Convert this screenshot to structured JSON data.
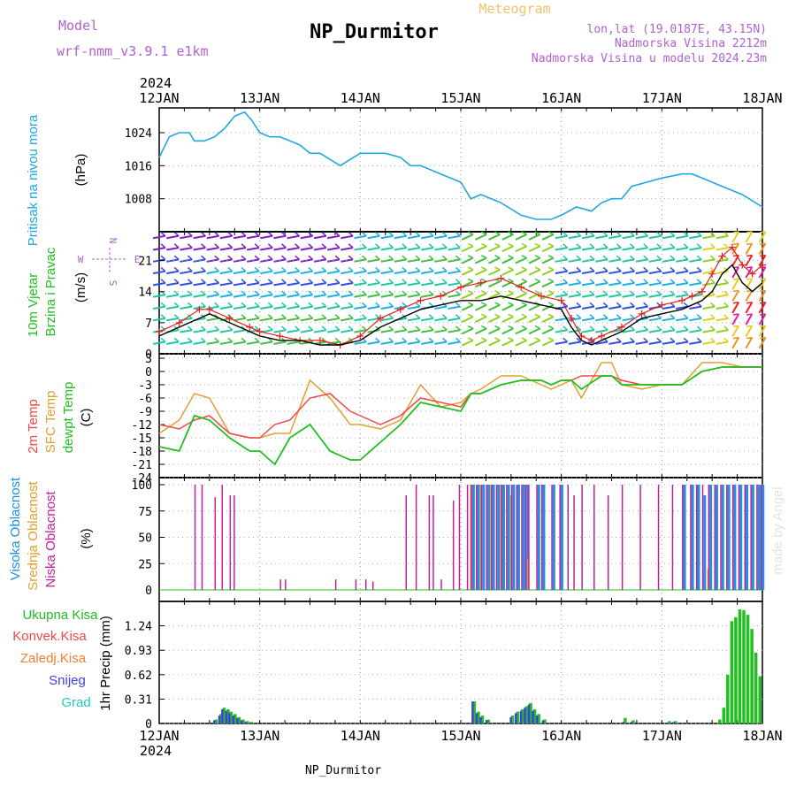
{
  "header": {
    "model_label": "Model",
    "model_name": "wrf-nmm_v3.9.1  e1km",
    "title": "NP_Durmitor",
    "product": "Meteogram",
    "coords": "lon,lat (19.0187E, 43.15N)",
    "elevation": "Nadmorska Visina 2212m",
    "model_elevation": "Nadmorska Visina u modelu 2024.23m",
    "footer": "NP_Durmitor",
    "credit": "made by Angel"
  },
  "time_axis": {
    "year": "2024",
    "labels": [
      "12JAN",
      "13JAN",
      "14JAN",
      "15JAN",
      "16JAN",
      "17JAN",
      "18JAN"
    ]
  },
  "colors": {
    "pressure": "#1fa8e0",
    "wind_speed": "#000000",
    "wind_gust": "#e02020",
    "temp_2m": "#f04848",
    "temp_sfc": "#e0a030",
    "dewpoint": "#20c020",
    "cloud_high": "#2090e0",
    "cloud_mid": "#e0a030",
    "cloud_low": "#c020a0",
    "precip_total": "#20c020",
    "precip_conv": "#f04848",
    "precip_freezing": "#f08030",
    "precip_snow": "#4040e0",
    "precip_hail": "#20c8c8"
  },
  "chart_data": [
    {
      "type": "line",
      "panel": "pressure",
      "ylabel_name": "Pritisak na nivou mora",
      "ylabel_unit": "(hPa)",
      "ylim": [
        1000,
        1030
      ],
      "yticks": [
        1008,
        1016,
        1024
      ],
      "grid": true,
      "x_days": [
        0,
        0.1,
        0.2,
        0.3,
        0.35,
        0.45,
        0.55,
        0.65,
        0.75,
        0.85,
        0.92,
        1.0,
        1.1,
        1.2,
        1.3,
        1.4,
        1.5,
        1.6,
        1.8,
        2.0,
        2.1,
        2.25,
        2.4,
        2.5,
        2.6,
        2.7,
        2.8,
        3.0,
        3.1,
        3.2,
        3.4,
        3.6,
        3.75,
        3.9,
        4.0,
        4.15,
        4.3,
        4.4,
        4.5,
        4.6,
        4.7,
        4.85,
        5.0,
        5.2,
        5.3,
        5.4,
        5.6,
        5.8,
        6.0
      ],
      "series": [
        {
          "values": [
            1018,
            1023,
            1024,
            1024,
            1022,
            1022,
            1023,
            1025,
            1028,
            1029,
            1027,
            1024,
            1023,
            1023,
            1022,
            1021,
            1019,
            1019,
            1016,
            1019,
            1019,
            1019,
            1018,
            1016,
            1016,
            1015,
            1014,
            1012,
            1008,
            1009,
            1007,
            1004,
            1003,
            1003,
            1004,
            1006,
            1005,
            1007,
            1008,
            1008,
            1011,
            1012,
            1013,
            1014,
            1014,
            1013,
            1011,
            1009,
            1006
          ]
        }
      ]
    },
    {
      "type": "line",
      "panel": "wind",
      "ylabel_name": "10m Vjetar Brzina i Pravac",
      "ylabel_unit": "(m/s)",
      "compass": {
        "n": "N",
        "s": "S",
        "e": "E",
        "w": "W"
      },
      "ylim": [
        0,
        27.5
      ],
      "yticks": [
        0,
        7,
        14,
        21
      ],
      "grid": true,
      "x_days": [
        0,
        0.2,
        0.4,
        0.5,
        0.7,
        0.9,
        1.0,
        1.2,
        1.4,
        1.6,
        1.8,
        2.0,
        2.2,
        2.4,
        2.6,
        2.8,
        3.0,
        3.2,
        3.4,
        3.6,
        3.8,
        4.0,
        4.1,
        4.2,
        4.3,
        4.4,
        4.6,
        4.8,
        5.0,
        5.2,
        5.3,
        5.4,
        5.5,
        5.6,
        5.7,
        5.8,
        5.9,
        6.0
      ],
      "series": [
        {
          "values": [
            4,
            6,
            8,
            9,
            7,
            5,
            4,
            3,
            3,
            2,
            2,
            3,
            6,
            8,
            10,
            11,
            12,
            12,
            13,
            12,
            11,
            10,
            6,
            3,
            2,
            3,
            5,
            8,
            9,
            10,
            11,
            12,
            14,
            18,
            20,
            16,
            14,
            16
          ]
        },
        {
          "values": [
            5,
            7,
            10,
            10,
            8,
            6,
            5,
            4,
            3,
            3,
            2,
            4,
            8,
            10,
            12,
            13,
            15,
            16,
            17,
            15,
            13,
            12,
            8,
            4,
            3,
            4,
            6,
            9,
            11,
            12,
            13,
            14,
            18,
            22,
            24,
            20,
            18,
            20
          ]
        }
      ]
    },
    {
      "type": "line",
      "panel": "temperature",
      "ylabel_names": [
        "2m Temp",
        "SFC Temp",
        "dewpt Temp"
      ],
      "ylabel_unit": "(C)",
      "ylim": [
        -24,
        4
      ],
      "yticks": [
        -24,
        -21,
        -18,
        -15,
        -12,
        -9,
        -6,
        -3,
        0,
        3
      ],
      "grid": true,
      "x_days": [
        0,
        0.2,
        0.35,
        0.5,
        0.7,
        0.9,
        1.0,
        1.15,
        1.3,
        1.5,
        1.7,
        1.9,
        2.0,
        2.2,
        2.4,
        2.6,
        2.8,
        3.0,
        3.1,
        3.2,
        3.4,
        3.6,
        3.8,
        3.9,
        4.0,
        4.1,
        4.2,
        4.4,
        4.5,
        4.6,
        4.8,
        5.0,
        5.2,
        5.4,
        5.6,
        5.8,
        6.0
      ],
      "series": [
        {
          "name": "2m Temp",
          "values": [
            -12,
            -13,
            -11,
            -10,
            -14,
            -15,
            -15,
            -12,
            -11,
            -6,
            -5,
            -9,
            -10,
            -12,
            -10,
            -6,
            -7,
            -8,
            -5,
            -5,
            -3,
            -2,
            -2,
            -3,
            -2,
            -2,
            -1,
            -1,
            -1,
            -2,
            -3,
            -3,
            -3,
            0,
            1,
            1,
            1
          ]
        },
        {
          "name": "SFC Temp",
          "values": [
            -14,
            -11,
            -5,
            -6,
            -14,
            -15,
            -15,
            -14,
            -14,
            -2,
            -6,
            -12,
            -12,
            -13,
            -11,
            -3,
            -8,
            -7,
            -5,
            -4,
            -1,
            -1,
            -3,
            -4,
            -3,
            -2,
            -6,
            2,
            2,
            -3,
            -4,
            -3,
            -3,
            2,
            2,
            1,
            1
          ]
        },
        {
          "name": "dewpt Temp",
          "values": [
            -17,
            -18,
            -10,
            -11,
            -15,
            -18,
            -18,
            -21,
            -15,
            -12,
            -18,
            -20,
            -20,
            -16,
            -12,
            -7,
            -8,
            -9,
            -5,
            -5,
            -3,
            -2,
            -2,
            -3,
            -2,
            -2,
            -4,
            -1,
            -1,
            -3,
            -3,
            -3,
            -3,
            0,
            1,
            1,
            1
          ]
        }
      ]
    },
    {
      "type": "bar",
      "panel": "clouds",
      "ylabel_names": [
        "Visoka Oblacnost",
        "Srednja Oblacnost",
        "Niska Oblacnost"
      ],
      "ylabel_unit": "(%)",
      "ylim": [
        0,
        100
      ],
      "yticks": [
        0,
        25,
        50,
        75,
        100
      ],
      "grid": true,
      "x_days": [
        0.35,
        0.42,
        0.55,
        0.62,
        0.7,
        0.74,
        1.2,
        1.25,
        1.75,
        1.95,
        2.05,
        2.12,
        2.45,
        2.55,
        2.68,
        2.72,
        2.8,
        2.92,
        2.98,
        3.06,
        3.1,
        3.15,
        3.2,
        3.25,
        3.3,
        3.35,
        3.4,
        3.45,
        3.5,
        3.55,
        3.6,
        3.64,
        3.67,
        3.75,
        3.8,
        3.9,
        3.98,
        4.06,
        4.12,
        4.2,
        4.32,
        4.46,
        4.6,
        4.78,
        4.96,
        5.1,
        5.2,
        5.28,
        5.34,
        5.4,
        5.46,
        5.52,
        5.58,
        5.64,
        5.7,
        5.76,
        5.82,
        5.88,
        5.94,
        5.98
      ],
      "series": [
        {
          "name": "Visoka Oblacnost",
          "values": [
            0,
            0,
            0,
            0,
            0,
            0,
            0,
            0,
            0,
            0,
            0,
            0,
            0,
            0,
            0,
            0,
            0,
            0,
            0,
            0,
            100,
            100,
            100,
            100,
            100,
            100,
            100,
            100,
            100,
            100,
            100,
            100,
            0,
            100,
            100,
            100,
            100,
            0,
            0,
            0,
            0,
            0,
            0,
            0,
            0,
            0,
            100,
            100,
            100,
            90,
            100,
            100,
            100,
            100,
            100,
            100,
            100,
            100,
            100,
            100
          ]
        },
        {
          "name": "Srednja Oblacnost",
          "values": [
            0,
            0,
            0,
            0,
            0,
            0,
            0,
            0,
            0,
            0,
            0,
            0,
            0,
            0,
            0,
            0,
            0,
            0,
            0,
            0,
            100,
            0,
            100,
            0,
            100,
            0,
            100,
            0,
            90,
            0,
            0,
            0,
            30,
            0,
            0,
            0,
            0,
            0,
            0,
            0,
            0,
            0,
            0,
            0,
            0,
            0,
            0,
            0,
            0,
            0,
            20,
            0,
            0,
            0,
            0,
            0,
            0,
            0,
            0,
            0
          ]
        },
        {
          "name": "Niska Oblacnost",
          "values": [
            100,
            100,
            88,
            100,
            90,
            90,
            10,
            10,
            10,
            10,
            10,
            8,
            90,
            100,
            90,
            90,
            10,
            85,
            100,
            100,
            100,
            100,
            100,
            100,
            100,
            100,
            100,
            100,
            100,
            100,
            100,
            100,
            100,
            100,
            100,
            100,
            100,
            100,
            90,
            100,
            100,
            90,
            100,
            100,
            100,
            100,
            100,
            100,
            100,
            100,
            100,
            100,
            100,
            100,
            100,
            100,
            100,
            100,
            100,
            100
          ]
        }
      ]
    },
    {
      "type": "bar",
      "panel": "precipitation",
      "ylabel_names": [
        "Ukupna Kisa",
        "Konvek.Kisa",
        "Zaledj.Kisa",
        "Snijeg",
        "Grad"
      ],
      "ylabel_unit": "1hr Precip (mm)",
      "ylim": [
        0,
        1.55
      ],
      "yticks": [
        0,
        0.31,
        0.62,
        0.93,
        1.24
      ],
      "grid": true,
      "x_days": [
        0.55,
        0.6,
        0.63,
        0.67,
        0.7,
        0.74,
        0.78,
        0.82,
        0.86,
        0.9,
        3.12,
        3.16,
        3.2,
        3.26,
        3.5,
        3.55,
        3.6,
        3.64,
        3.68,
        3.72,
        3.76,
        3.82,
        4.62,
        4.7,
        5.06,
        5.12,
        5.56,
        5.6,
        5.64,
        5.68,
        5.72,
        5.76,
        5.8,
        5.84,
        5.88,
        5.92,
        5.96
      ],
      "series": [
        {
          "name": "Ukupna Kisa",
          "values": [
            0.05,
            0.12,
            0.2,
            0.18,
            0.15,
            0.12,
            0.08,
            0.05,
            0.03,
            0.02,
            0.28,
            0.15,
            0.1,
            0.05,
            0.1,
            0.15,
            0.18,
            0.22,
            0.26,
            0.18,
            0.12,
            0.05,
            0.07,
            0.04,
            0.03,
            0.03,
            0.05,
            0.2,
            0.62,
            1.3,
            1.35,
            1.45,
            1.44,
            1.38,
            1.2,
            0.9,
            0.6
          ]
        },
        {
          "name": "Snijeg",
          "values": [
            0.04,
            0.1,
            0.18,
            0.16,
            0.13,
            0.1,
            0.07,
            0.04,
            0.02,
            0.01,
            0.28,
            0.13,
            0.08,
            0.04,
            0.08,
            0.13,
            0.16,
            0.2,
            0.24,
            0.16,
            0.1,
            0.04,
            0.02,
            0.02,
            0.01,
            0.02,
            0,
            0,
            0,
            0,
            0,
            0,
            0,
            0,
            0,
            0,
            0
          ]
        }
      ]
    }
  ]
}
